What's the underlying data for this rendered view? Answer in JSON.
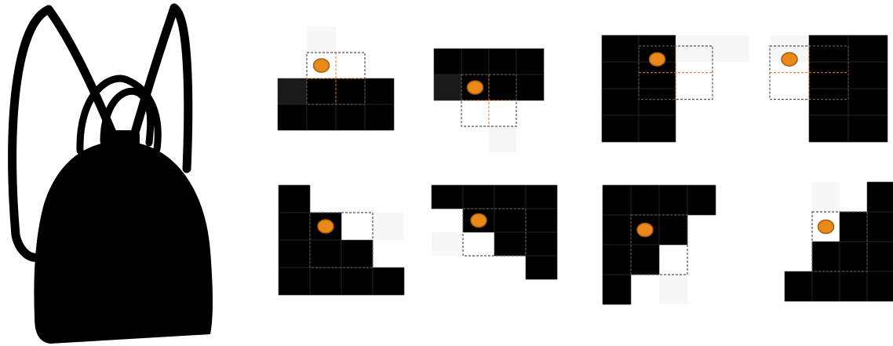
{
  "colors": {
    "background": "#ffffff",
    "silhouette": "#000000",
    "pixel_black": "#000000",
    "pixel_dark": "#1a1a1a",
    "pixel_faint": "#f7f7f7",
    "grid_line": "#303030",
    "window_dash": "#555555",
    "dot_fill": "#e8891a",
    "dot_stroke": "#a75c10",
    "guide_line": "#d9782a"
  },
  "icons": {
    "silhouette": "backpack-silhouette-icon",
    "marker": "orange-dot-icon"
  },
  "panels": [
    {
      "name": "pattern-1",
      "cells": [
        [
          1,
          0,
          "faint"
        ],
        [
          0,
          2,
          "dark"
        ],
        [
          1,
          2,
          "black"
        ],
        [
          2,
          2,
          "black"
        ],
        [
          3,
          2,
          "black"
        ],
        [
          0,
          3,
          "black"
        ],
        [
          1,
          3,
          "black"
        ],
        [
          2,
          3,
          "black"
        ],
        [
          3,
          3,
          "black"
        ]
      ],
      "window": [
        1,
        1,
        2,
        2
      ],
      "dot": [
        1,
        1
      ],
      "guides": true
    },
    {
      "name": "pattern-2",
      "cells": [
        [
          0,
          0,
          "black"
        ],
        [
          1,
          0,
          "black"
        ],
        [
          2,
          0,
          "black"
        ],
        [
          3,
          0,
          "black"
        ],
        [
          0,
          1,
          "dark"
        ],
        [
          1,
          1,
          "black"
        ],
        [
          2,
          1,
          "black"
        ],
        [
          3,
          1,
          "black"
        ],
        [
          2,
          3,
          "faint"
        ]
      ],
      "window": [
        1,
        1,
        2,
        2
      ],
      "dot": [
        1,
        1
      ],
      "guides": true
    },
    {
      "name": "pattern-3",
      "cells": [
        [
          0,
          0,
          "black"
        ],
        [
          1,
          0,
          "black"
        ],
        [
          2,
          0,
          "faint"
        ],
        [
          3,
          0,
          "faint"
        ],
        [
          0,
          1,
          "black"
        ],
        [
          1,
          1,
          "black"
        ],
        [
          0,
          2,
          "black"
        ],
        [
          1,
          2,
          "black"
        ],
        [
          0,
          3,
          "black"
        ],
        [
          1,
          3,
          "black"
        ]
      ],
      "window": [
        1,
        0.4,
        2,
        2
      ],
      "dot": [
        1,
        0.4
      ],
      "guides": true
    },
    {
      "name": "pattern-4",
      "cells": [
        [
          0,
          0,
          "faint"
        ],
        [
          1,
          0,
          "black"
        ],
        [
          2,
          0,
          "black"
        ],
        [
          1,
          1,
          "black"
        ],
        [
          2,
          1,
          "black"
        ],
        [
          1,
          2,
          "black"
        ],
        [
          2,
          2,
          "black"
        ],
        [
          1,
          3,
          "black"
        ],
        [
          2,
          3,
          "black"
        ]
      ],
      "window": [
        0,
        0.4,
        2,
        2
      ],
      "dot": [
        0,
        0.4
      ],
      "guides": true
    },
    {
      "name": "pattern-5",
      "cells": [
        [
          0,
          0,
          "black"
        ],
        [
          0,
          1,
          "black"
        ],
        [
          1,
          1,
          "black"
        ],
        [
          3,
          1,
          "faint"
        ],
        [
          0,
          2,
          "black"
        ],
        [
          1,
          2,
          "black"
        ],
        [
          2,
          2,
          "black"
        ],
        [
          0,
          3,
          "black"
        ],
        [
          1,
          3,
          "black"
        ],
        [
          2,
          3,
          "black"
        ],
        [
          3,
          3,
          "black"
        ]
      ],
      "window": [
        1,
        1,
        2,
        2
      ],
      "dot": [
        1,
        1
      ],
      "guides": false
    },
    {
      "name": "pattern-6",
      "cells": [
        [
          0,
          0,
          "black"
        ],
        [
          1,
          0,
          "black"
        ],
        [
          2,
          0,
          "black"
        ],
        [
          3,
          0,
          "black"
        ],
        [
          1,
          1,
          "black"
        ],
        [
          2,
          1,
          "black"
        ],
        [
          3,
          1,
          "black"
        ],
        [
          0,
          2,
          "faint"
        ],
        [
          2,
          2,
          "black"
        ],
        [
          3,
          2,
          "black"
        ],
        [
          3,
          3,
          "black"
        ]
      ],
      "window": [
        1,
        1,
        2,
        2
      ],
      "dot": [
        1,
        1
      ],
      "guides": false
    },
    {
      "name": "pattern-7",
      "cells": [
        [
          0,
          0,
          "black"
        ],
        [
          1,
          0,
          "black"
        ],
        [
          2,
          0,
          "black"
        ],
        [
          3,
          0,
          "black"
        ],
        [
          0,
          1,
          "black"
        ],
        [
          1,
          1,
          "black"
        ],
        [
          2,
          1,
          "black"
        ],
        [
          0,
          2,
          "black"
        ],
        [
          1,
          2,
          "black"
        ],
        [
          0,
          3,
          "black"
        ],
        [
          2,
          3,
          "faint"
        ]
      ],
      "window": [
        1,
        1,
        2,
        2
      ],
      "dot": [
        1,
        1
      ],
      "guides": false
    },
    {
      "name": "pattern-8",
      "cells": [
        [
          1,
          0,
          "faint"
        ],
        [
          3,
          0,
          "black"
        ],
        [
          2,
          1,
          "black"
        ],
        [
          3,
          1,
          "black"
        ],
        [
          1,
          2,
          "black"
        ],
        [
          2,
          2,
          "black"
        ],
        [
          3,
          2,
          "black"
        ],
        [
          0,
          3,
          "black"
        ],
        [
          1,
          3,
          "black"
        ],
        [
          2,
          3,
          "black"
        ],
        [
          3,
          3,
          "black"
        ]
      ],
      "window": [
        1,
        1,
        2,
        2
      ],
      "dot": [
        1,
        1
      ],
      "guides": false
    }
  ]
}
